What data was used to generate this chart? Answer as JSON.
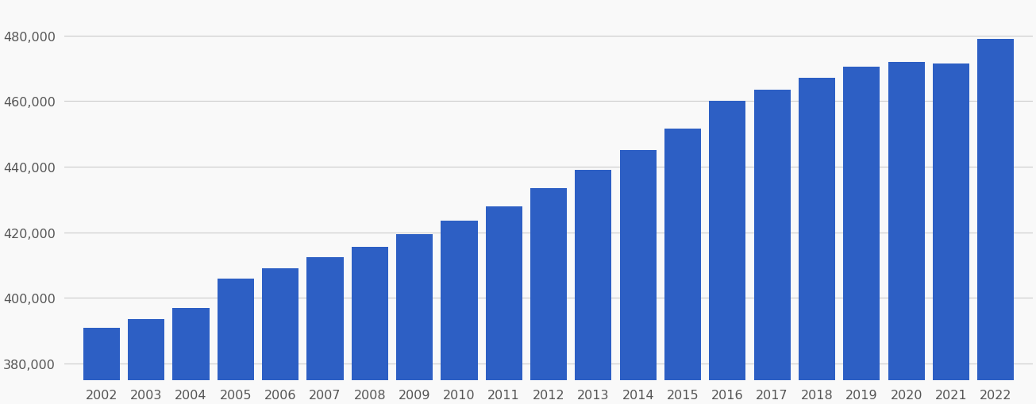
{
  "years": [
    2002,
    2003,
    2004,
    2005,
    2006,
    2007,
    2008,
    2009,
    2010,
    2011,
    2012,
    2013,
    2014,
    2015,
    2016,
    2017,
    2018,
    2019,
    2020,
    2021,
    2022
  ],
  "values": [
    391000,
    393500,
    397000,
    406000,
    409000,
    412500,
    415500,
    419500,
    423500,
    428000,
    433500,
    439000,
    445000,
    451500,
    460000,
    463500,
    467000,
    470500,
    472000,
    471500,
    479000
  ],
  "bar_color": "#2d5fc4",
  "background_color": "#f9f9f9",
  "ylim_min": 375000,
  "ylim_max": 490000,
  "yticks": [
    380000,
    400000,
    420000,
    440000,
    460000,
    480000
  ],
  "grid_color": "#cccccc",
  "tick_label_color": "#555555",
  "tick_fontsize": 11.5,
  "bar_width": 0.82
}
